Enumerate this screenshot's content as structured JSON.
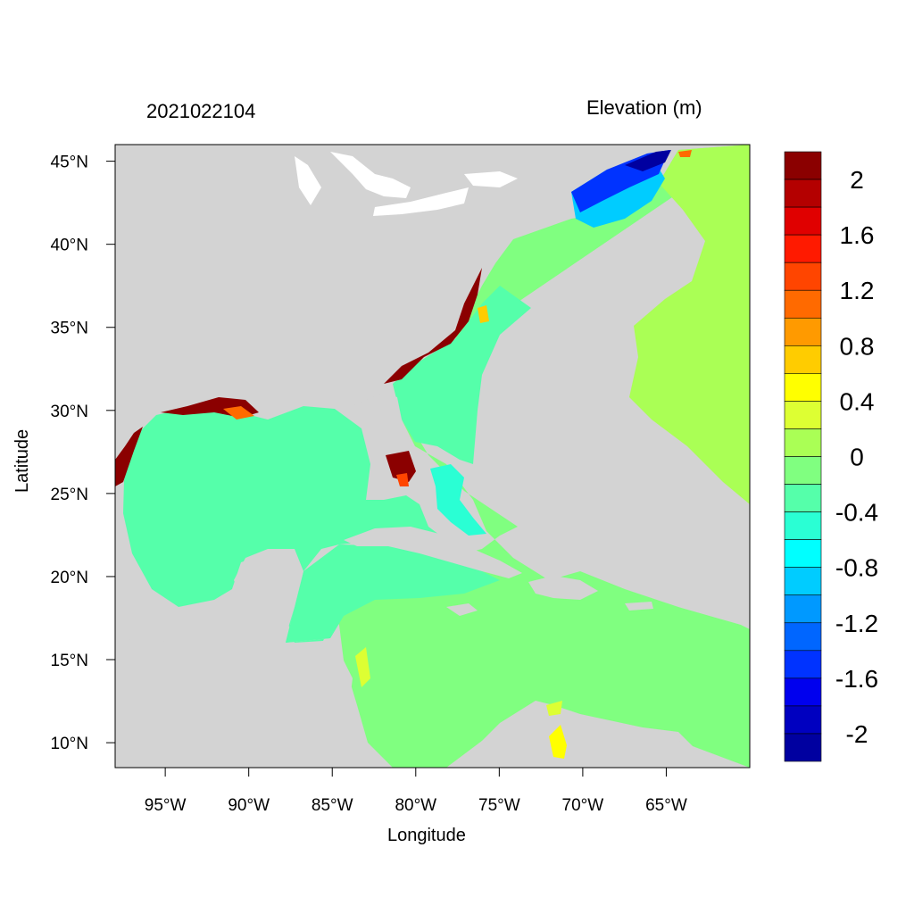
{
  "header": {
    "timestamp": "2021022104",
    "variable": "Elevation (m)"
  },
  "axes": {
    "xlabel": "Longitude",
    "ylabel": "Latitude",
    "lon_range": [
      -98,
      -60
    ],
    "lat_range": [
      8.5,
      46
    ],
    "x_ticks": [
      {
        "value": -95,
        "label": "95°W"
      },
      {
        "value": -90,
        "label": "90°W"
      },
      {
        "value": -85,
        "label": "85°W"
      },
      {
        "value": -80,
        "label": "80°W"
      },
      {
        "value": -75,
        "label": "75°W"
      },
      {
        "value": -70,
        "label": "70°W"
      },
      {
        "value": -65,
        "label": "65°W"
      }
    ],
    "y_ticks": [
      {
        "value": 45,
        "label": "45°N"
      },
      {
        "value": 40,
        "label": "40°N"
      },
      {
        "value": 35,
        "label": "35°N"
      },
      {
        "value": 30,
        "label": "30°N"
      },
      {
        "value": 25,
        "label": "25°N"
      },
      {
        "value": 20,
        "label": "20°N"
      },
      {
        "value": 15,
        "label": "15°N"
      },
      {
        "value": 10,
        "label": "10°N"
      }
    ]
  },
  "colorbar": {
    "colors_top_to_bottom": [
      "#8b0000",
      "#b40000",
      "#e00000",
      "#ff1a00",
      "#ff4500",
      "#ff6a00",
      "#ff9a00",
      "#ffcc00",
      "#ffff00",
      "#ddff33",
      "#aaff55",
      "#80ff80",
      "#55ffaa",
      "#2affd4",
      "#00ffff",
      "#00ccff",
      "#0099ff",
      "#0066ff",
      "#0033ff",
      "#0000ee",
      "#0000c0",
      "#0000a0"
    ],
    "labels": [
      {
        "value": 2,
        "label": "2"
      },
      {
        "value": 1.6,
        "label": "1.6"
      },
      {
        "value": 1.2,
        "label": "1.2"
      },
      {
        "value": 0.8,
        "label": "0.8"
      },
      {
        "value": 0.4,
        "label": "0.4"
      },
      {
        "value": 0,
        "label": "0"
      },
      {
        "value": -0.4,
        "label": "-0.4"
      },
      {
        "value": -0.8,
        "label": "-0.8"
      },
      {
        "value": -1.2,
        "label": "-1.2"
      },
      {
        "value": -1.6,
        "label": "-1.6"
      },
      {
        "value": -2,
        "label": "-2"
      }
    ]
  },
  "map_colors": {
    "land": "#d3d3d3",
    "ocean_gulf": "#55ffaa",
    "ocean_open": "#80ff80",
    "ocean_east": "#aaff55",
    "coastal_high": "#8b0000",
    "gulf_of_maine": "#0033ff",
    "lakes": "#ffffff"
  }
}
